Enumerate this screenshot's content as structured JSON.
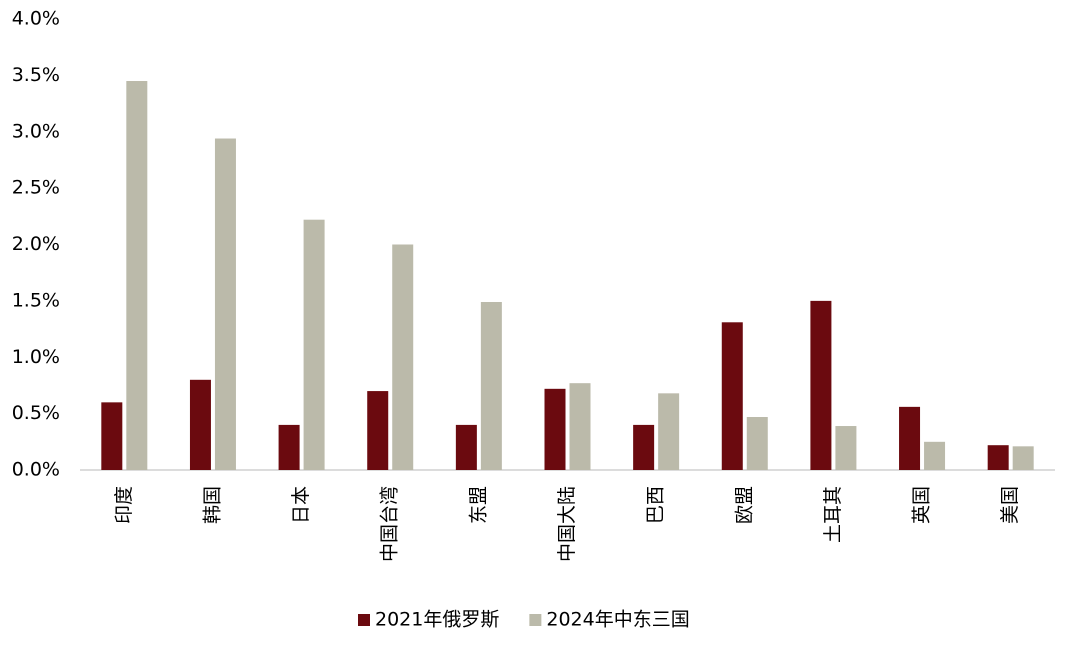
{
  "chart_data": {
    "type": "bar",
    "categories": [
      "印度",
      "韩国",
      "日本",
      "中国台湾",
      "东盟",
      "中国大陆",
      "巴西",
      "欧盟",
      "土耳其",
      "英国",
      "美国"
    ],
    "series": [
      {
        "name": "2021年俄罗斯",
        "color": "#6b0a0f",
        "values": [
          0.6,
          0.8,
          0.4,
          0.7,
          0.4,
          0.72,
          0.4,
          1.31,
          1.5,
          0.56,
          0.22
        ]
      },
      {
        "name": "2024年中东三国",
        "color": "#bbbaaa",
        "values": [
          3.45,
          2.94,
          2.22,
          2.0,
          1.49,
          0.77,
          0.68,
          0.47,
          0.39,
          0.25,
          0.21
        ]
      }
    ],
    "ylim": [
      0,
      4
    ],
    "yticks": [
      {
        "value": 0,
        "label": "0.0%"
      },
      {
        "value": 0.5,
        "label": "0.5%"
      },
      {
        "value": 1,
        "label": "1.0%"
      },
      {
        "value": 1.5,
        "label": "1.5%"
      },
      {
        "value": 2,
        "label": "2.0%"
      },
      {
        "value": 2.5,
        "label": "2.5%"
      },
      {
        "value": 3,
        "label": "3.0%"
      },
      {
        "value": 3.5,
        "label": "3.5%"
      },
      {
        "value": 4,
        "label": "4.0%"
      }
    ],
    "grid": false,
    "legend": "bottom"
  }
}
